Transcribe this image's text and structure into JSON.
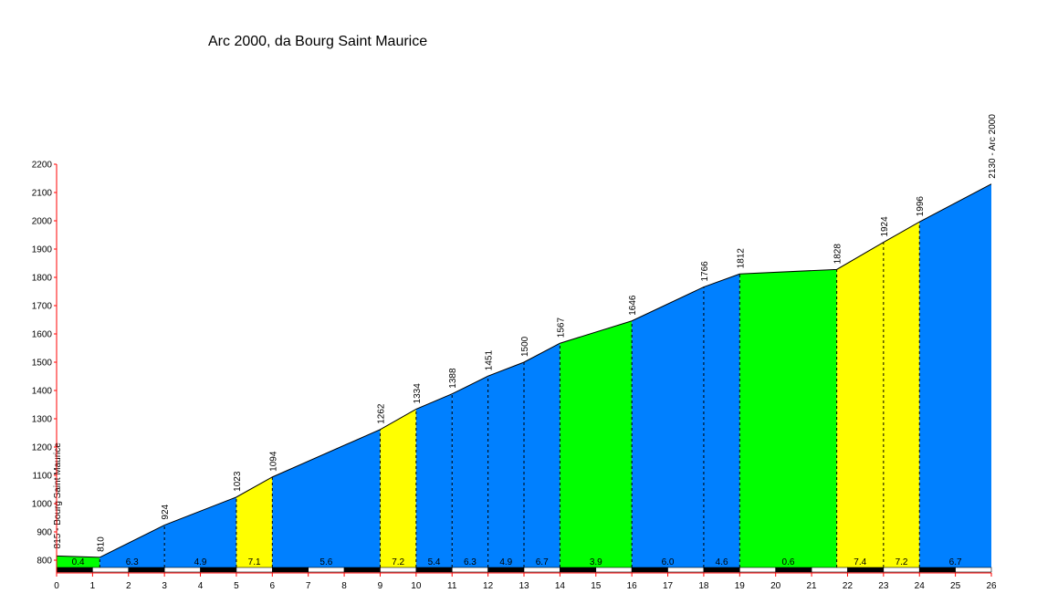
{
  "chart_data": {
    "type": "area",
    "title": "Arc 2000, da Bourg Saint Maurice",
    "xlabel": "",
    "ylabel": "",
    "xlim": [
      0,
      26
    ],
    "ylim": [
      760,
      2200
    ],
    "x_ticks": [
      0,
      1,
      2,
      3,
      4,
      5,
      6,
      7,
      8,
      9,
      10,
      11,
      12,
      13,
      14,
      15,
      16,
      17,
      18,
      19,
      20,
      21,
      22,
      23,
      24,
      25,
      26
    ],
    "y_ticks": [
      800,
      900,
      1000,
      1100,
      1200,
      1300,
      1400,
      1500,
      1600,
      1700,
      1800,
      1900,
      2000,
      2100,
      2200
    ],
    "profile": [
      {
        "x": 0,
        "y": 815,
        "label": "815 - Bourg Saint Maurice"
      },
      {
        "x": 1.2,
        "y": 810,
        "label": "810"
      },
      {
        "x": 3,
        "y": 924,
        "label": "924"
      },
      {
        "x": 5,
        "y": 1023,
        "label": "1023"
      },
      {
        "x": 6,
        "y": 1094,
        "label": "1094"
      },
      {
        "x": 9,
        "y": 1262,
        "label": "1262"
      },
      {
        "x": 10,
        "y": 1334,
        "label": "1334"
      },
      {
        "x": 11,
        "y": 1388,
        "label": "1388"
      },
      {
        "x": 12,
        "y": 1451,
        "label": "1451"
      },
      {
        "x": 13,
        "y": 1500,
        "label": "1500"
      },
      {
        "x": 14,
        "y": 1567,
        "label": "1567"
      },
      {
        "x": 16,
        "y": 1646,
        "label": "1646"
      },
      {
        "x": 18,
        "y": 1766,
        "label": "1766"
      },
      {
        "x": 19,
        "y": 1812,
        "label": "1812"
      },
      {
        "x": 21.7,
        "y": 1828,
        "label": "1828"
      },
      {
        "x": 23,
        "y": 1924,
        "label": "1924"
      },
      {
        "x": 24,
        "y": 1996,
        "label": "1996"
      },
      {
        "x": 26,
        "y": 2130,
        "label": "2130 - Arc 2000"
      }
    ],
    "segments": [
      {
        "from": 0,
        "to": 1.2,
        "grade": "0.4",
        "color": "green"
      },
      {
        "from": 1.2,
        "to": 3,
        "grade": "6.3",
        "color": "blue"
      },
      {
        "from": 3,
        "to": 5,
        "grade": "4.9",
        "color": "blue"
      },
      {
        "from": 5,
        "to": 6,
        "grade": "7.1",
        "color": "yellow"
      },
      {
        "from": 6,
        "to": 9,
        "grade": "5.6",
        "color": "blue"
      },
      {
        "from": 9,
        "to": 10,
        "grade": "7.2",
        "color": "yellow"
      },
      {
        "from": 10,
        "to": 11,
        "grade": "5.4",
        "color": "blue"
      },
      {
        "from": 11,
        "to": 12,
        "grade": "6.3",
        "color": "blue"
      },
      {
        "from": 12,
        "to": 13,
        "grade": "4.9",
        "color": "blue"
      },
      {
        "from": 13,
        "to": 14,
        "grade": "6.7",
        "color": "blue"
      },
      {
        "from": 14,
        "to": 16,
        "grade": "3.9",
        "color": "green"
      },
      {
        "from": 16,
        "to": 18,
        "grade": "6.0",
        "color": "blue"
      },
      {
        "from": 18,
        "to": 19,
        "grade": "4.6",
        "color": "blue"
      },
      {
        "from": 19,
        "to": 21.7,
        "grade": "0.6",
        "color": "green"
      },
      {
        "from": 21.7,
        "to": 23,
        "grade": "7.4",
        "color": "yellow"
      },
      {
        "from": 23,
        "to": 24,
        "grade": "7.2",
        "color": "yellow"
      },
      {
        "from": 24,
        "to": 26,
        "grade": "6.7",
        "color": "blue"
      }
    ],
    "colors": {
      "blue": "#0080ff",
      "green": "#00ff00",
      "yellow": "#ffff00",
      "axis": "#ff0000",
      "outline": "#000000"
    },
    "grid": false,
    "legend": "none"
  }
}
